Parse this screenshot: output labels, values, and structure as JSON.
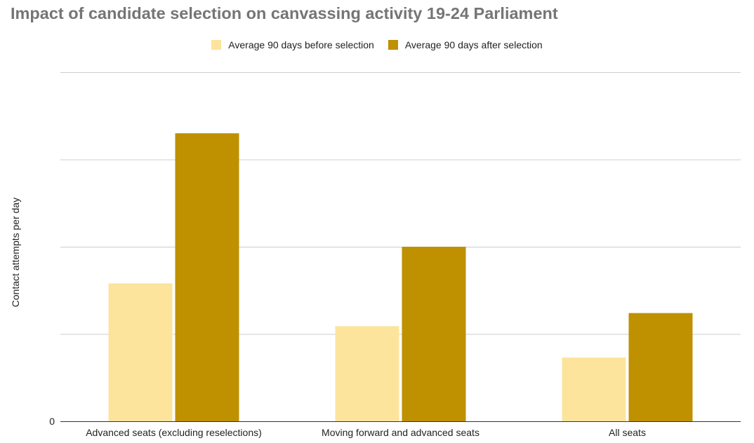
{
  "title": "Impact of candidate selection on canvassing activity 19-24 Parliament",
  "chart_data": {
    "type": "bar",
    "title": "Impact of candidate selection on canvassing activity 19-24 Parliament",
    "xlabel": "",
    "ylabel": "Contact attempts per day",
    "categories": [
      "Advanced seats (excluding reselections)",
      "Moving forward and advanced seats",
      "All seats"
    ],
    "series": [
      {
        "name": "Average 90 days before selection",
        "color": "#fde49c",
        "values": [
          1.58,
          1.09,
          0.73
        ]
      },
      {
        "name": "Average 90 days after selection",
        "color": "#bf9000",
        "values": [
          3.3,
          2.0,
          1.24
        ]
      }
    ],
    "ylim": [
      0,
      4
    ],
    "yticks": [
      0,
      1,
      2,
      3,
      4
    ],
    "ytick_labels": [
      "0",
      "",
      "",
      "",
      ""
    ],
    "grid": true,
    "legend_position": "top-center"
  }
}
